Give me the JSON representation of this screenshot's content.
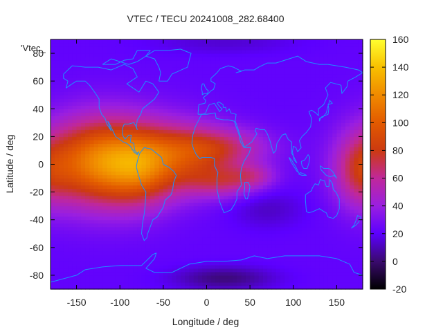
{
  "chart_data": {
    "type": "heatmap",
    "title": "VTEC / TECU 20241008_282.68400",
    "xlabel": "Longitude / deg",
    "ylabel": "Latitude / deg",
    "xlim": [
      -180,
      180
    ],
    "ylim": [
      -90,
      90
    ],
    "x_ticks": [
      -150,
      -100,
      -50,
      0,
      50,
      100,
      150
    ],
    "y_ticks": [
      -80,
      -60,
      -40,
      -20,
      0,
      20,
      40,
      60,
      80
    ],
    "grid": false,
    "inset_label": "'Vtec_",
    "colorbar": {
      "label": "",
      "range": [
        -20,
        160
      ],
      "ticks": [
        -20,
        0,
        20,
        40,
        60,
        80,
        100,
        120,
        140,
        160
      ],
      "stops": [
        {
          "v": -20,
          "color": "#000000"
        },
        {
          "v": 0,
          "color": "#3a0a6e"
        },
        {
          "v": 20,
          "color": "#5c00ff"
        },
        {
          "v": 40,
          "color": "#9a1fe0"
        },
        {
          "v": 60,
          "color": "#c0289a"
        },
        {
          "v": 80,
          "color": "#cc3a10"
        },
        {
          "v": 100,
          "color": "#e25a00"
        },
        {
          "v": 120,
          "color": "#f08a00"
        },
        {
          "v": 140,
          "color": "#f8c000"
        },
        {
          "v": 160,
          "color": "#ffff30"
        }
      ]
    },
    "field": {
      "background": 22,
      "features": [
        {
          "lon": -120,
          "lat": 2,
          "slon": 45,
          "slat": 22,
          "amp": 95
        },
        {
          "lon": -75,
          "lat": -5,
          "slon": 25,
          "slat": 18,
          "amp": 25
        },
        {
          "lon": -35,
          "lat": 5,
          "slon": 40,
          "slat": 18,
          "amp": 48
        },
        {
          "lon": 15,
          "lat": 12,
          "slon": 40,
          "slat": 10,
          "amp": 38
        },
        {
          "lon": 20,
          "lat": -12,
          "slon": 30,
          "slat": 8,
          "amp": 35
        },
        {
          "lon": 55,
          "lat": -8,
          "slon": 18,
          "slat": 6,
          "amp": 20
        },
        {
          "lon": 175,
          "lat": -5,
          "slon": 20,
          "slat": 18,
          "amp": 30
        },
        {
          "lon": 20,
          "lat": -82,
          "slon": 40,
          "slat": 6,
          "amp": -20
        },
        {
          "lon": 70,
          "lat": -32,
          "slon": 30,
          "slat": 10,
          "amp": -10
        },
        {
          "lon": 20,
          "lat": 88,
          "slon": 60,
          "slat": 6,
          "amp": -8
        }
      ]
    }
  }
}
